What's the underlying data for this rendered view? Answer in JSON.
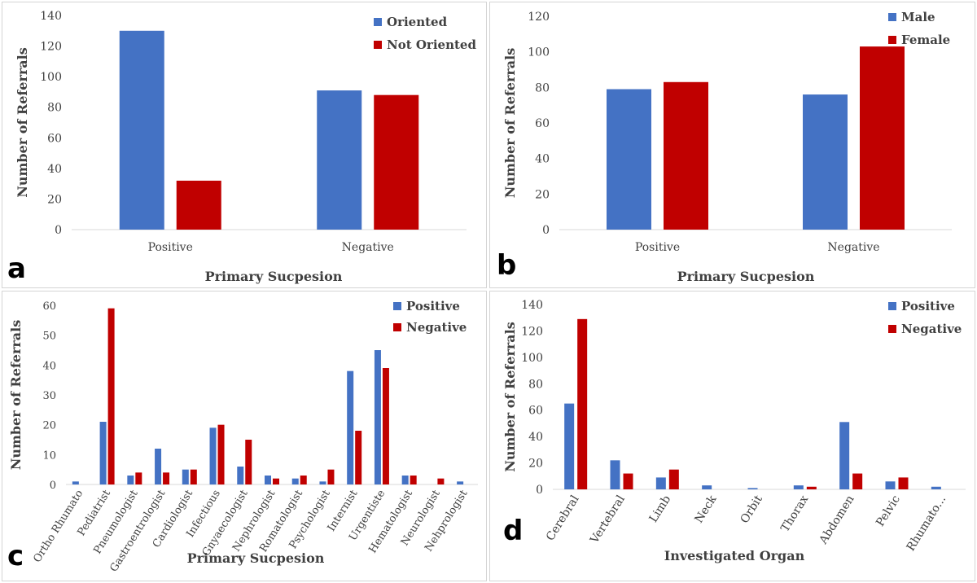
{
  "colors": {
    "blue": "#4472C4",
    "red": "#C00000"
  },
  "chart_data": [
    {
      "panel": "a",
      "type": "bar",
      "categories": [
        "Positive",
        "Negative"
      ],
      "series": [
        {
          "name": "Oriented",
          "values": [
            130,
            91
          ]
        },
        {
          "name": "Not Oriented",
          "values": [
            32,
            88
          ]
        }
      ],
      "xlabel": "Primary Sucpesion",
      "ylabel": "Number of Referrals",
      "ylim": [
        0,
        140
      ],
      "yticks": [
        "0",
        "20",
        "40",
        "60",
        "80",
        "100",
        "120",
        "140"
      ],
      "grid": false,
      "legend": "top-right"
    },
    {
      "panel": "b",
      "type": "bar",
      "categories": [
        "Positive",
        "Negative"
      ],
      "series": [
        {
          "name": "Male",
          "values": [
            79,
            76
          ]
        },
        {
          "name": "Female",
          "values": [
            83,
            103
          ]
        }
      ],
      "xlabel": "Primary Sucpesion",
      "ylabel": "Number of Referrals",
      "ylim": [
        0,
        120
      ],
      "yticks": [
        "0",
        "20",
        "40",
        "60",
        "80",
        "100",
        "120"
      ],
      "grid": false,
      "legend": "top-right"
    },
    {
      "panel": "c",
      "type": "bar",
      "categories": [
        "Ortho Rhumato",
        "Pediatrist",
        "Pneumologist",
        "Gastroentrologist",
        "Cardiologist",
        "Infectious",
        "Gnyaecologist",
        "Nephrologist",
        "Romatologist",
        "Psychologist",
        "Internist",
        "Urgentiste",
        "Hematologist",
        "Neurologist",
        "Nehprologist"
      ],
      "series": [
        {
          "name": "Positive",
          "values": [
            1,
            21,
            3,
            12,
            5,
            19,
            6,
            3,
            2,
            1,
            38,
            45,
            3,
            0,
            1
          ]
        },
        {
          "name": "Negative",
          "values": [
            0,
            59,
            4,
            4,
            5,
            20,
            15,
            2,
            3,
            5,
            18,
            39,
            3,
            2,
            0
          ]
        }
      ],
      "xlabel": "Primary Sucpesion",
      "ylabel": "Number of Referrals",
      "ylim": [
        0,
        60
      ],
      "yticks": [
        "0",
        "10",
        "20",
        "30",
        "40",
        "50",
        "60"
      ],
      "grid": false,
      "legend": "top-right"
    },
    {
      "panel": "d",
      "type": "bar",
      "categories": [
        "Cerebral",
        "Vertebral",
        "Limb",
        "Neck",
        "Orbit",
        "Thorax",
        "Abdomen",
        "Pelvic",
        "Rhumato..."
      ],
      "series": [
        {
          "name": "Positive",
          "values": [
            65,
            22,
            9,
            3,
            1,
            3,
            51,
            6,
            2
          ]
        },
        {
          "name": "Negative",
          "values": [
            129,
            12,
            15,
            0,
            0,
            2,
            12,
            9,
            0
          ]
        }
      ],
      "xlabel": "Investigated Organ",
      "ylabel": "Number of Referrals",
      "ylim": [
        0,
        140
      ],
      "yticks": [
        "0",
        "20",
        "40",
        "60",
        "80",
        "100",
        "120",
        "140"
      ],
      "grid": false,
      "legend": "top-right"
    }
  ]
}
